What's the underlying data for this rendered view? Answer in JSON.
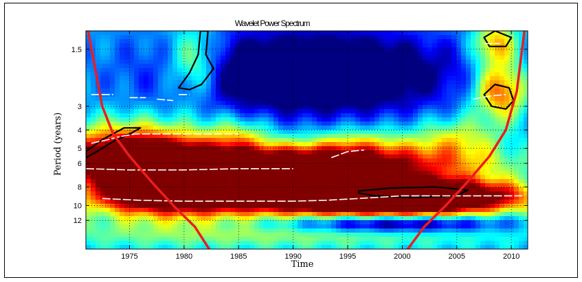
{
  "chart_data": {
    "type": "heatmap",
    "title": "Wavelet Power Spectrum",
    "xlabel": "Time",
    "ylabel": "Period (years)",
    "xlim": [
      1971,
      2011.5
    ],
    "ylim_period": [
      1.2,
      17
    ],
    "y_scale": "log2",
    "y_reversed": true,
    "grid": "dotted",
    "colormap": "jet",
    "x_ticks": [
      1975,
      1980,
      1985,
      1990,
      1995,
      2000,
      2005,
      2010
    ],
    "x_tick_labels": [
      "1975",
      "1980",
      "1985",
      "1990",
      "1995",
      "2000",
      "2005",
      "2010"
    ],
    "y_ticks": [
      1.5,
      3,
      4,
      5,
      6,
      8,
      10,
      12
    ],
    "y_tick_labels": [
      "1.5",
      "3",
      "4",
      "5",
      "6",
      "8",
      "10",
      "12"
    ],
    "power_regions": [
      {
        "x_center": 1989,
        "period_center": 6.2,
        "x_width": 16,
        "period_width_oct": 0.35,
        "level": 1.0
      },
      {
        "x_center": 1975.5,
        "period_center": 5.5,
        "x_width": 7,
        "period_width_oct": 0.55,
        "level": 0.85
      },
      {
        "x_center": 2001,
        "period_center": 9.0,
        "x_width": 10,
        "period_width_oct": 0.3,
        "level": 1.05
      },
      {
        "x_center": 1991,
        "period_center": 9.2,
        "x_width": 14,
        "period_width_oct": 0.3,
        "level": 0.7
      },
      {
        "x_center": 1978,
        "period_center": 9.0,
        "x_width": 7,
        "period_width_oct": 0.35,
        "level": 0.6
      },
      {
        "x_center": 2009,
        "period_center": 2.5,
        "x_width": 2.5,
        "period_width_oct": 0.5,
        "level": 0.55
      },
      {
        "x_center": 2008.5,
        "period_center": 1.4,
        "x_width": 2.0,
        "period_width_oct": 0.4,
        "level": 0.45
      },
      {
        "x_center": 1981,
        "period_center": 1.8,
        "x_width": 2.5,
        "period_width_oct": 0.6,
        "level": 0.4
      },
      {
        "x_center": 2005,
        "period_center": 4.5,
        "x_width": 4,
        "period_width_oct": 0.4,
        "level": 0.3
      },
      {
        "x_center": 1985,
        "period_center": 4.3,
        "x_width": 3,
        "period_width_oct": 0.35,
        "level": 0.25
      },
      {
        "x_center": 1996,
        "period_center": 4.8,
        "x_width": 5,
        "period_width_oct": 0.35,
        "level": 0.25
      },
      {
        "x_center": 1987,
        "period_center": 14,
        "x_width": 25,
        "period_width_oct": 0.3,
        "level": 0.25
      }
    ],
    "low_power_regions": [
      {
        "x_center": 1992,
        "period_center": 2.0,
        "x_width": 12,
        "period_width_oct": 0.7,
        "level": 0.6
      },
      {
        "x_center": 1999,
        "period_center": 12.5,
        "x_width": 10,
        "period_width_oct": 0.15,
        "level": 0.5
      }
    ],
    "cone_of_influence": {
      "left": [
        [
          1971.2,
          1.2
        ],
        [
          1972.5,
          3.0
        ],
        [
          1973.5,
          4.2
        ],
        [
          1975,
          5.5
        ],
        [
          1977,
          7.5
        ],
        [
          1979,
          10
        ],
        [
          1981,
          13
        ],
        [
          1982.3,
          17
        ]
      ],
      "right": [
        [
          2000.5,
          17
        ],
        [
          2002,
          13
        ],
        [
          2004,
          10
        ],
        [
          2006,
          7.5
        ],
        [
          2008,
          5.5
        ],
        [
          2009.5,
          4.0
        ],
        [
          2010.5,
          2.5
        ],
        [
          2011.2,
          1.2
        ]
      ]
    },
    "significance_contours": [
      [
        [
          1971,
          5.2
        ],
        [
          1972.5,
          4.5
        ],
        [
          1974.5,
          3.9
        ],
        [
          1976,
          3.9
        ],
        [
          1975,
          4.2
        ],
        [
          1973.5,
          4.6
        ],
        [
          1972,
          5.2
        ],
        [
          1971,
          5.6
        ]
      ],
      [
        [
          1996,
          8.4
        ],
        [
          1999,
          8.1
        ],
        [
          2003,
          8.0
        ],
        [
          2006,
          8.3
        ],
        [
          2005,
          8.9
        ],
        [
          2001,
          9.1
        ],
        [
          1997.5,
          8.9
        ],
        [
          1996,
          8.6
        ]
      ],
      [
        [
          1979.5,
          2.4
        ],
        [
          1980.5,
          2.0
        ],
        [
          1981.3,
          1.6
        ],
        [
          1981.5,
          1.2
        ],
        [
          1982.2,
          1.2
        ],
        [
          1982,
          1.6
        ],
        [
          1982.7,
          1.9
        ],
        [
          1981.6,
          2.3
        ],
        [
          1980.5,
          2.45
        ]
      ],
      [
        [
          2007.5,
          2.6
        ],
        [
          2008.5,
          2.3
        ],
        [
          2009.8,
          2.4
        ],
        [
          2010.2,
          2.8
        ],
        [
          2009.5,
          3.1
        ],
        [
          2008.2,
          3.0
        ]
      ],
      [
        [
          2007.5,
          1.3
        ],
        [
          2008.5,
          1.2
        ],
        [
          2010,
          1.3
        ],
        [
          2009.5,
          1.45
        ],
        [
          2008,
          1.45
        ]
      ]
    ],
    "ridge_segments": [
      [
        [
          1971.5,
          2.6
        ],
        [
          1973.5,
          2.6
        ]
      ],
      [
        [
          1975,
          2.7
        ],
        [
          1976.5,
          2.7
        ]
      ],
      [
        [
          1977.5,
          2.75
        ],
        [
          1979,
          2.8
        ]
      ],
      [
        [
          1979.5,
          2.6
        ],
        [
          1980.5,
          2.6
        ]
      ],
      [
        [
          1971.5,
          4.7
        ],
        [
          1973,
          4.5
        ],
        [
          1974,
          4.35
        ],
        [
          1975.5,
          4.2
        ],
        [
          1980,
          4.2
        ],
        [
          1985,
          4.2
        ]
      ],
      [
        [
          1971,
          6.4
        ],
        [
          1975,
          6.5
        ],
        [
          1980,
          6.5
        ],
        [
          1985,
          6.4
        ],
        [
          1990,
          6.4
        ]
      ],
      [
        [
          1972.5,
          9.2
        ],
        [
          1976,
          9.4
        ],
        [
          1980,
          9.5
        ],
        [
          1985,
          9.5
        ],
        [
          1990,
          9.5
        ],
        [
          1993,
          9.4
        ],
        [
          1996,
          9.2
        ],
        [
          2000,
          8.9
        ],
        [
          2005,
          8.9
        ],
        [
          2011,
          8.9
        ]
      ],
      [
        [
          1993.5,
          5.6
        ],
        [
          1995,
          5.2
        ],
        [
          1996.5,
          5.1
        ]
      ],
      [
        [
          2006.5,
          2.75
        ],
        [
          2008,
          2.65
        ],
        [
          2009.5,
          2.6
        ]
      ],
      [
        [
          2007.5,
          1.4
        ],
        [
          2009,
          1.4
        ]
      ]
    ]
  }
}
